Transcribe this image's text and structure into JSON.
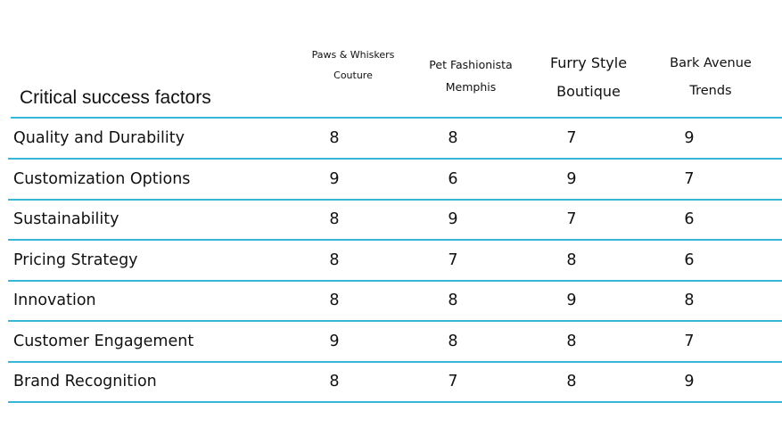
{
  "chart_data": {
    "type": "table",
    "header_label": "Critical success factors",
    "columns": [
      "Paws & Whiskers Couture",
      "Pet Fashionista Memphis",
      "Furry Style Boutique",
      "Bark Avenue Trends"
    ],
    "rows": [
      {
        "label": "Quality and Durability",
        "values": [
          8,
          8,
          7,
          9
        ]
      },
      {
        "label": "Customization Options",
        "values": [
          9,
          6,
          9,
          7
        ]
      },
      {
        "label": "Sustainability",
        "values": [
          8,
          9,
          7,
          6
        ]
      },
      {
        "label": "Pricing Strategy",
        "values": [
          8,
          7,
          8,
          6
        ]
      },
      {
        "label": "Innovation",
        "values": [
          8,
          8,
          9,
          8
        ]
      },
      {
        "label": "Customer Engagement",
        "values": [
          9,
          8,
          8,
          7
        ]
      },
      {
        "label": "Brand Recognition",
        "values": [
          8,
          7,
          8,
          9
        ]
      }
    ],
    "rule_color": "#38b6d6"
  }
}
